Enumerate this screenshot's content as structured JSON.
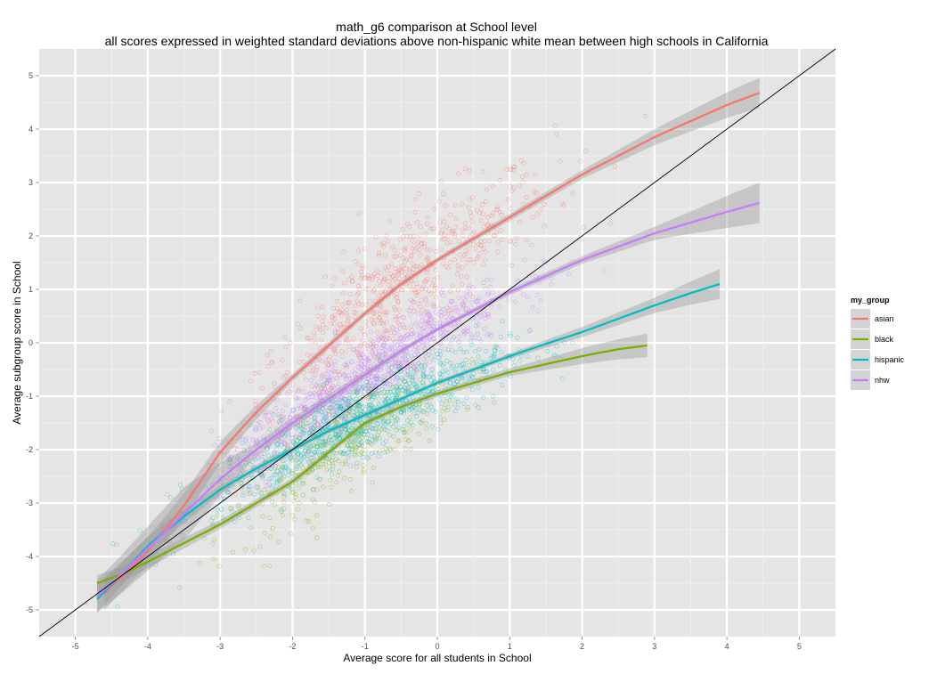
{
  "chart_data": {
    "type": "scatter",
    "title": "math_g6 comparison at School level",
    "subtitle": "all scores expressed in weighted standard deviations above non-hispanic white mean between high schools in California",
    "xlabel": "Average score for all students in School",
    "ylabel": "Average subgroup score in School",
    "xlim": [
      -5.5,
      5.5
    ],
    "ylim": [
      -5.5,
      5.5
    ],
    "x_ticks": [
      "-5",
      "-4",
      "-3",
      "-2",
      "-1",
      "0",
      "1",
      "2",
      "3",
      "4",
      "5"
    ],
    "y_ticks": [
      "-5",
      "-4",
      "-3",
      "-2",
      "-1",
      "0",
      "1",
      "2",
      "3",
      "4",
      "5"
    ],
    "grid": true,
    "reference_line": "y = x",
    "legend": {
      "title": "my_group",
      "position": "right"
    },
    "series": [
      {
        "name": "asian",
        "color": "#F8766D",
        "x_range": [
          -4.6,
          4.45
        ],
        "smooth": [
          [
            -4.6,
            -4.7
          ],
          [
            -4.3,
            -4.3
          ],
          [
            -4.0,
            -3.9
          ],
          [
            -3.5,
            -3.05
          ],
          [
            -3.0,
            -2.05
          ],
          [
            -2.5,
            -1.3
          ],
          [
            -2.0,
            -0.65
          ],
          [
            -1.5,
            -0.05
          ],
          [
            -1.0,
            0.55
          ],
          [
            -0.5,
            1.1
          ],
          [
            0.0,
            1.55
          ],
          [
            0.5,
            1.95
          ],
          [
            1.0,
            2.35
          ],
          [
            1.5,
            2.75
          ],
          [
            2.0,
            3.15
          ],
          [
            2.5,
            3.5
          ],
          [
            3.0,
            3.85
          ],
          [
            3.5,
            4.15
          ],
          [
            4.0,
            4.45
          ],
          [
            4.45,
            4.68
          ]
        ],
        "band_half_width": [
          [
            -4.6,
            0.3
          ],
          [
            -3.0,
            0.2
          ],
          [
            -2.0,
            0.07
          ],
          [
            0.0,
            0.05
          ],
          [
            2.0,
            0.08
          ],
          [
            3.0,
            0.15
          ],
          [
            4.45,
            0.28
          ]
        ]
      },
      {
        "name": "black",
        "color": "#7CAE00",
        "x_range": [
          -4.7,
          2.9
        ],
        "smooth": [
          [
            -4.7,
            -4.5
          ],
          [
            -4.3,
            -4.3
          ],
          [
            -4.0,
            -4.1
          ],
          [
            -3.5,
            -3.75
          ],
          [
            -3.0,
            -3.4
          ],
          [
            -2.5,
            -3.0
          ],
          [
            -2.0,
            -2.6
          ],
          [
            -1.5,
            -2.05
          ],
          [
            -1.0,
            -1.5
          ],
          [
            -0.5,
            -1.2
          ],
          [
            0.0,
            -0.95
          ],
          [
            0.5,
            -0.75
          ],
          [
            1.0,
            -0.55
          ],
          [
            1.5,
            -0.4
          ],
          [
            2.0,
            -0.25
          ],
          [
            2.5,
            -0.12
          ],
          [
            2.9,
            -0.05
          ]
        ],
        "band_half_width": [
          [
            -4.7,
            0.15
          ],
          [
            -3.0,
            0.08
          ],
          [
            -1.0,
            0.05
          ],
          [
            1.0,
            0.07
          ],
          [
            2.9,
            0.22
          ]
        ]
      },
      {
        "name": "hispanic",
        "color": "#00BFC4",
        "x_range": [
          -4.7,
          3.9
        ],
        "smooth": [
          [
            -4.7,
            -4.8
          ],
          [
            -4.3,
            -4.25
          ],
          [
            -4.0,
            -3.8
          ],
          [
            -3.5,
            -3.25
          ],
          [
            -3.0,
            -2.75
          ],
          [
            -2.5,
            -2.35
          ],
          [
            -2.0,
            -2.0
          ],
          [
            -1.5,
            -1.65
          ],
          [
            -1.0,
            -1.35
          ],
          [
            -0.5,
            -1.05
          ],
          [
            0.0,
            -0.75
          ],
          [
            0.5,
            -0.5
          ],
          [
            1.0,
            -0.25
          ],
          [
            1.5,
            -0.02
          ],
          [
            2.0,
            0.2
          ],
          [
            2.5,
            0.45
          ],
          [
            3.0,
            0.7
          ],
          [
            3.5,
            0.93
          ],
          [
            3.9,
            1.1
          ]
        ],
        "band_half_width": [
          [
            -4.7,
            0.25
          ],
          [
            -3.0,
            0.08
          ],
          [
            -1.0,
            0.04
          ],
          [
            1.0,
            0.05
          ],
          [
            3.0,
            0.14
          ],
          [
            3.9,
            0.28
          ]
        ]
      },
      {
        "name": "nhw",
        "color": "#C77CFF",
        "x_range": [
          -4.7,
          4.45
        ],
        "smooth": [
          [
            -4.7,
            -4.75
          ],
          [
            -4.3,
            -4.25
          ],
          [
            -4.0,
            -3.85
          ],
          [
            -3.5,
            -3.2
          ],
          [
            -3.0,
            -2.55
          ],
          [
            -2.5,
            -2.0
          ],
          [
            -2.0,
            -1.5
          ],
          [
            -1.5,
            -1.05
          ],
          [
            -1.0,
            -0.6
          ],
          [
            -0.5,
            -0.15
          ],
          [
            0.0,
            0.25
          ],
          [
            0.5,
            0.6
          ],
          [
            1.0,
            0.95
          ],
          [
            1.5,
            1.25
          ],
          [
            2.0,
            1.55
          ],
          [
            2.5,
            1.8
          ],
          [
            3.0,
            2.05
          ],
          [
            3.5,
            2.25
          ],
          [
            4.0,
            2.45
          ],
          [
            4.45,
            2.62
          ]
        ],
        "band_half_width": [
          [
            -4.7,
            0.3
          ],
          [
            -3.5,
            0.5
          ],
          [
            -2.5,
            0.12
          ],
          [
            0.0,
            0.04
          ],
          [
            2.0,
            0.07
          ],
          [
            3.0,
            0.12
          ],
          [
            4.45,
            0.38
          ]
        ]
      }
    ]
  }
}
